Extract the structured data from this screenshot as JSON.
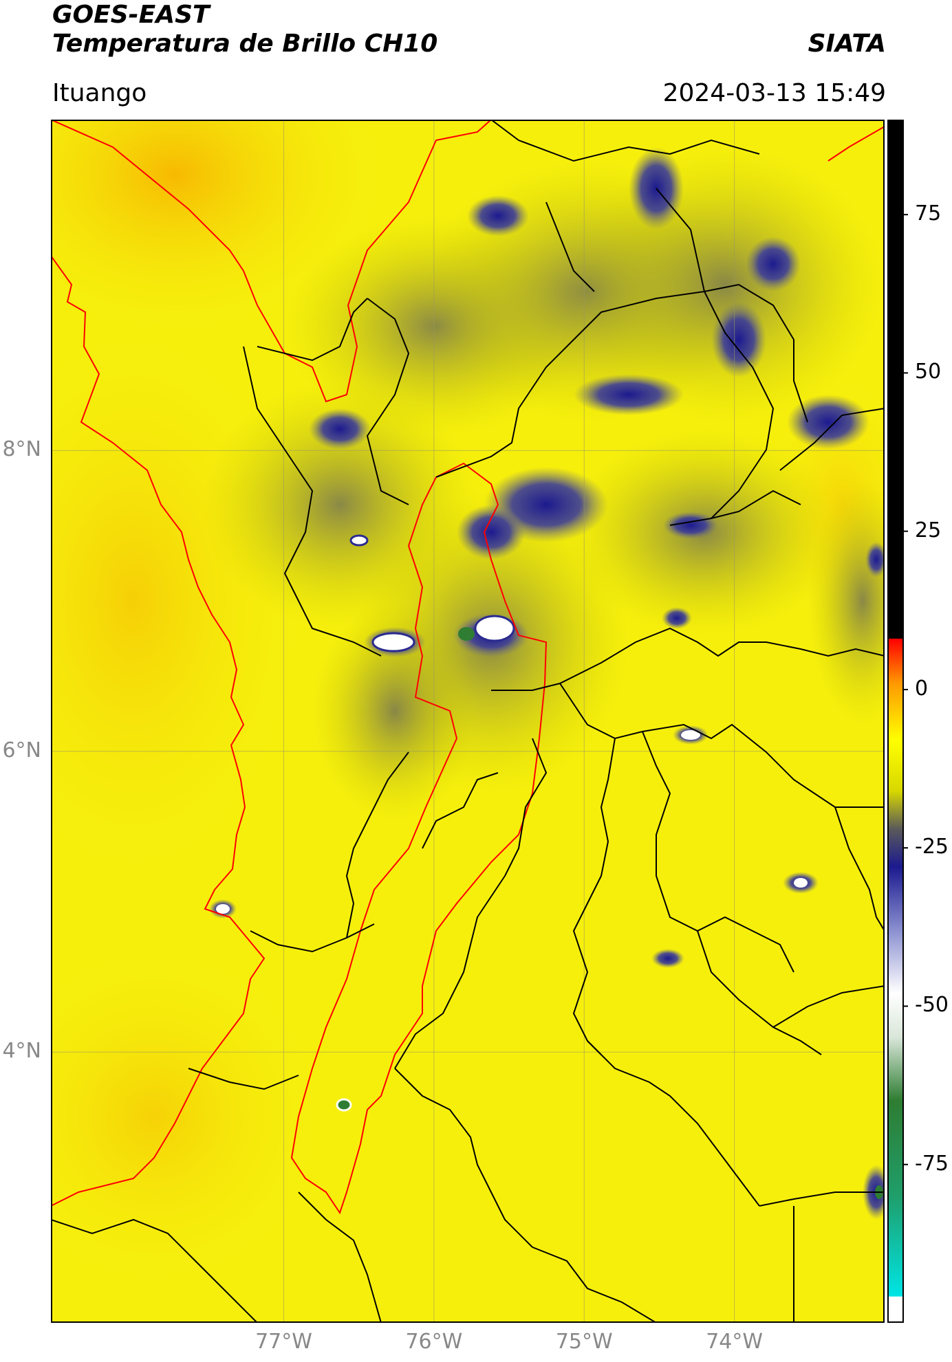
{
  "header": {
    "satellite": "GOES-EAST",
    "product": "Temperatura de Brillo CH10",
    "org": "SIATA",
    "location": "Ituango",
    "datetime": "2024-03-13 15:49"
  },
  "map": {
    "lat_labels": [
      "8°N",
      "6°N",
      "4°N"
    ],
    "lon_labels": [
      "77°W",
      "76°W",
      "75°W",
      "74°W"
    ],
    "lat_values": [
      8,
      6,
      4
    ],
    "lon_values": [
      -77,
      -76,
      -75,
      -74
    ],
    "lat_range": [
      2.2,
      10.2
    ],
    "lon_range": [
      -78.55,
      -73.0
    ],
    "background_color": "#f6ef0c",
    "coast_color": "#ff0000",
    "border_color": "#000000",
    "gridline_color": "#9a9a60"
  },
  "colorbar": {
    "ticks": [
      "75",
      "50",
      "25",
      "0",
      "-25",
      "-50",
      "-75"
    ],
    "tick_values": [
      75,
      50,
      25,
      0,
      -25,
      -50,
      -75
    ],
    "range": [
      -100,
      90
    ],
    "stops": [
      {
        "v": -100,
        "c": "#ffffff"
      },
      {
        "v": -96,
        "c": "#ffffff"
      },
      {
        "v": -95.9,
        "c": "#00e5e5"
      },
      {
        "v": -80,
        "c": "#1f9e6a"
      },
      {
        "v": -65,
        "c": "#2e7d32"
      },
      {
        "v": -55,
        "c": "#d9e6d9"
      },
      {
        "v": -48,
        "c": "#ffffff"
      },
      {
        "v": -38,
        "c": "#8a8fd0"
      },
      {
        "v": -28,
        "c": "#1c1a8f"
      },
      {
        "v": -22,
        "c": "#5a5a5a"
      },
      {
        "v": -16,
        "c": "#d8d800"
      },
      {
        "v": -8,
        "c": "#ffff00"
      },
      {
        "v": 1,
        "c": "#ff9900"
      },
      {
        "v": 8,
        "c": "#ff0000"
      },
      {
        "v": 8.1,
        "c": "#000000"
      },
      {
        "v": 90,
        "c": "#000000"
      }
    ]
  }
}
